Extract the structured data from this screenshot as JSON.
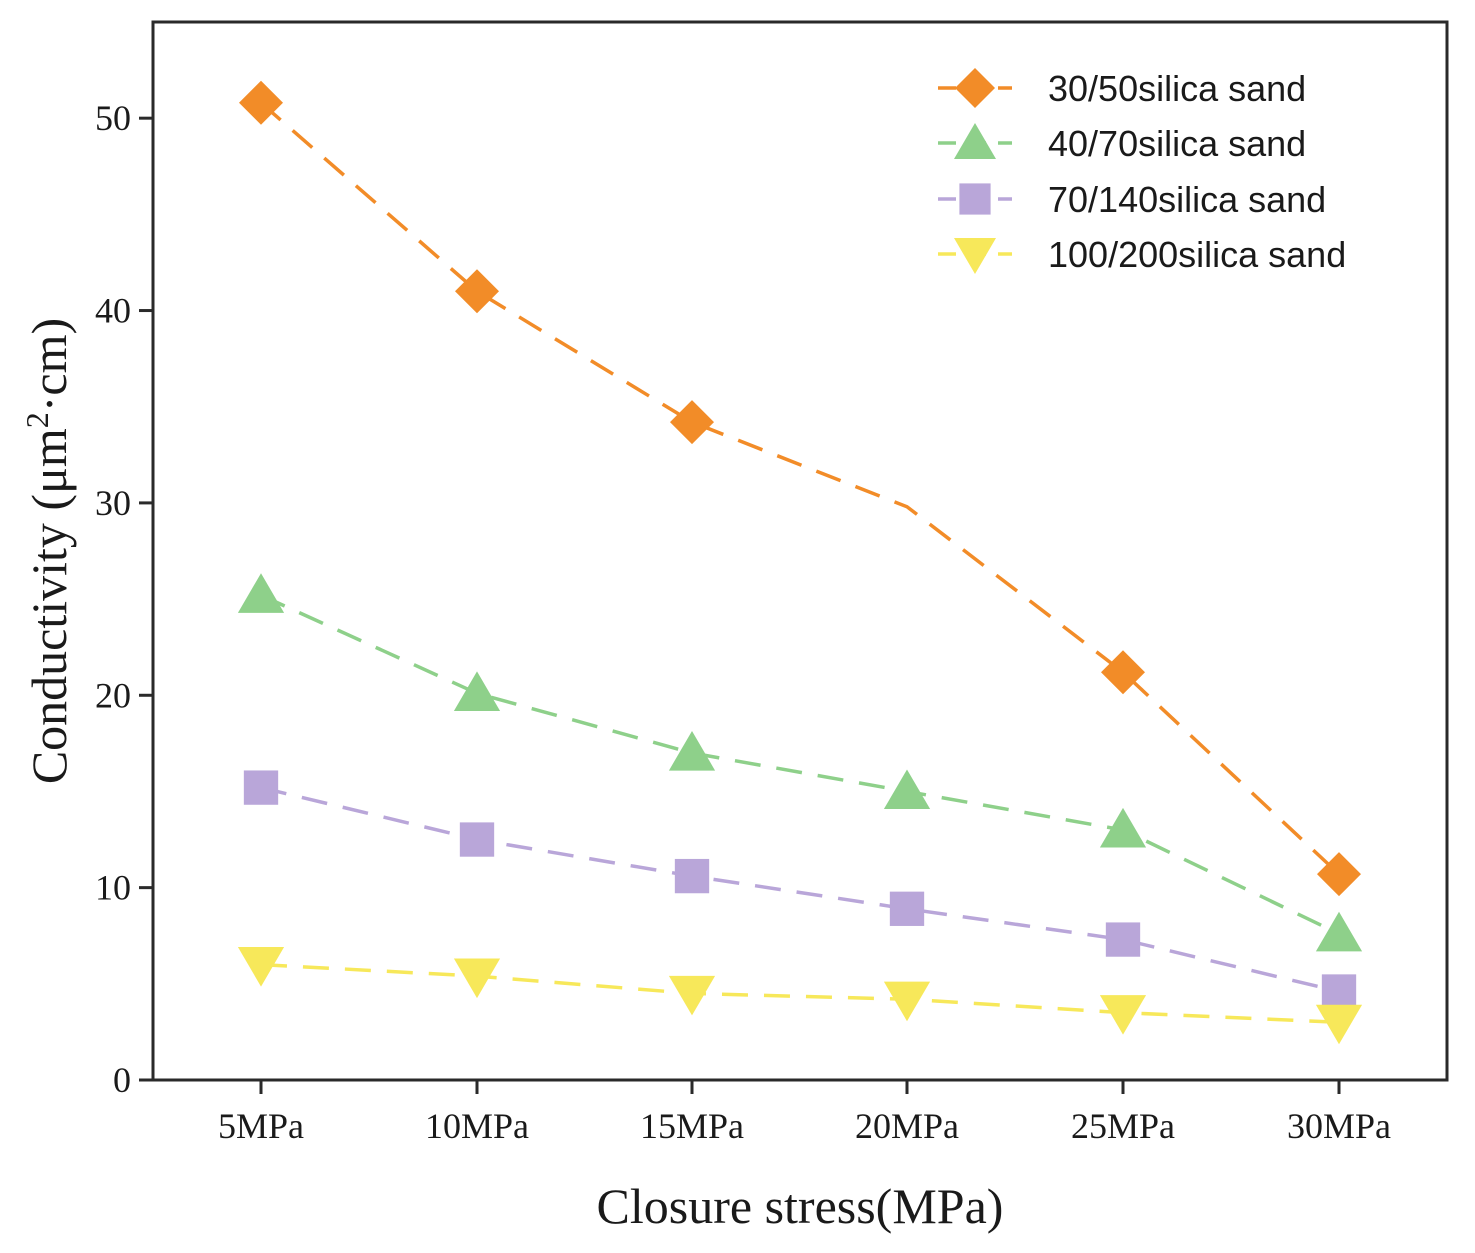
{
  "chart_data": {
    "type": "line",
    "title": "",
    "xlabel": "Closure stress(MPa)",
    "ylabel": "Conductivity (μm²·cm)",
    "ylabel_parts": {
      "main": "Conductivity (μm",
      "sup": "2",
      "tail": "·cm)"
    },
    "categories": [
      "5MPa",
      "10MPa",
      "15MPa",
      "20MPa",
      "25MPa",
      "30MPa"
    ],
    "ylim": [
      0,
      55
    ],
    "yticks": [
      0,
      10,
      20,
      30,
      40,
      50
    ],
    "grid": false,
    "legend_position": "top-right",
    "series": [
      {
        "name": "30/50silica sand",
        "marker": "diamond",
        "color": "#F28C28",
        "values": [
          50.8,
          41.0,
          34.2,
          29.8,
          21.2,
          10.7
        ],
        "markers_shown": [
          true,
          true,
          true,
          false,
          true,
          true
        ]
      },
      {
        "name": "40/70silica sand",
        "marker": "triangle-up",
        "color": "#8ED08A",
        "values": [
          25.2,
          20.1,
          17.0,
          15.0,
          13.0,
          7.6
        ],
        "markers_shown": [
          true,
          true,
          true,
          true,
          true,
          true
        ]
      },
      {
        "name": "70/140silica sand",
        "marker": "square",
        "color": "#B9A6D9",
        "values": [
          15.2,
          12.5,
          10.6,
          8.9,
          7.3,
          4.6
        ],
        "markers_shown": [
          true,
          true,
          true,
          true,
          true,
          true
        ]
      },
      {
        "name": "100/200silica sand",
        "marker": "triangle-down",
        "color": "#F7E85A",
        "values": [
          6.0,
          5.4,
          4.5,
          4.2,
          3.5,
          3.0
        ],
        "markers_shown": [
          true,
          true,
          true,
          true,
          true,
          true
        ]
      }
    ]
  }
}
